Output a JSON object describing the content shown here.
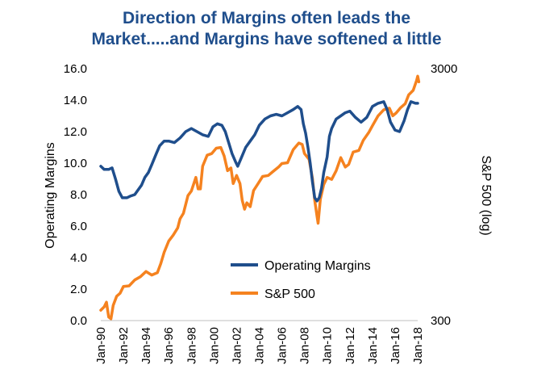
{
  "chart_data": {
    "type": "line",
    "title_line1": "Direction of Margins often leads the",
    "title_line2": "Market.....and Margins have softened a little",
    "ylabel_left": "Operating Margins",
    "ylabel_right": "S&P 500 (log)",
    "ylim_left": [
      0,
      16
    ],
    "yticks_left": [
      "0.0",
      "2.0",
      "4.0",
      "6.0",
      "8.0",
      "10.0",
      "12.0",
      "14.0",
      "16.0"
    ],
    "ylim_right": [
      300,
      3000
    ],
    "yticks_right": [
      "300",
      "3000"
    ],
    "right_scale": "log",
    "xlim": [
      1990,
      2018
    ],
    "xticks": [
      "Jan-90",
      "Jan-92",
      "Jan-94",
      "Jan-96",
      "Jan-98",
      "Jan-00",
      "Jan-02",
      "Jan-04",
      "Jan-06",
      "Jan-08",
      "Jan-10",
      "Jan-12",
      "Jan-14",
      "Jan-16",
      "Jan-18"
    ],
    "legend_position": "bottom-right",
    "colors": {
      "margins": "#1f4e8c",
      "sp500": "#f5821f"
    },
    "series": [
      {
        "name": "Operating Margins",
        "axis": "left",
        "points": [
          [
            1990.0,
            9.8
          ],
          [
            1990.3,
            9.6
          ],
          [
            1990.7,
            9.6
          ],
          [
            1991.0,
            9.7
          ],
          [
            1991.3,
            9.0
          ],
          [
            1991.6,
            8.2
          ],
          [
            1991.9,
            7.8
          ],
          [
            1992.3,
            7.8
          ],
          [
            1992.6,
            7.9
          ],
          [
            1993.0,
            8.0
          ],
          [
            1993.3,
            8.3
          ],
          [
            1993.6,
            8.6
          ],
          [
            1993.9,
            9.1
          ],
          [
            1994.2,
            9.4
          ],
          [
            1994.5,
            9.9
          ],
          [
            1994.9,
            10.6
          ],
          [
            1995.2,
            11.1
          ],
          [
            1995.6,
            11.4
          ],
          [
            1996.0,
            11.4
          ],
          [
            1996.5,
            11.3
          ],
          [
            1997.0,
            11.6
          ],
          [
            1997.5,
            12.0
          ],
          [
            1998.0,
            12.2
          ],
          [
            1998.5,
            12.0
          ],
          [
            1999.0,
            11.8
          ],
          [
            1999.5,
            11.7
          ],
          [
            1999.9,
            12.3
          ],
          [
            2000.3,
            12.5
          ],
          [
            2000.7,
            12.4
          ],
          [
            2001.0,
            12.0
          ],
          [
            2001.3,
            11.3
          ],
          [
            2001.6,
            10.6
          ],
          [
            2001.9,
            10.1
          ],
          [
            2002.1,
            9.8
          ],
          [
            2002.4,
            10.3
          ],
          [
            2002.8,
            11.0
          ],
          [
            2003.2,
            11.4
          ],
          [
            2003.6,
            11.8
          ],
          [
            2004.0,
            12.4
          ],
          [
            2004.5,
            12.8
          ],
          [
            2005.0,
            13.0
          ],
          [
            2005.5,
            13.1
          ],
          [
            2006.0,
            13.0
          ],
          [
            2006.5,
            13.2
          ],
          [
            2007.0,
            13.4
          ],
          [
            2007.4,
            13.6
          ],
          [
            2007.7,
            13.4
          ],
          [
            2007.9,
            12.5
          ],
          [
            2008.1,
            11.9
          ],
          [
            2008.3,
            11.0
          ],
          [
            2008.5,
            10.0
          ],
          [
            2008.7,
            8.8
          ],
          [
            2008.9,
            7.8
          ],
          [
            2009.1,
            7.6
          ],
          [
            2009.3,
            7.8
          ],
          [
            2009.5,
            8.4
          ],
          [
            2009.7,
            9.4
          ],
          [
            2010.0,
            10.4
          ],
          [
            2010.2,
            11.7
          ],
          [
            2010.4,
            12.2
          ],
          [
            2010.8,
            12.8
          ],
          [
            2011.2,
            13.0
          ],
          [
            2011.6,
            13.2
          ],
          [
            2012.0,
            13.3
          ],
          [
            2012.5,
            12.9
          ],
          [
            2013.0,
            12.6
          ],
          [
            2013.5,
            12.9
          ],
          [
            2014.0,
            13.6
          ],
          [
            2014.5,
            13.8
          ],
          [
            2015.0,
            13.9
          ],
          [
            2015.3,
            13.4
          ],
          [
            2015.6,
            12.6
          ],
          [
            2016.0,
            12.1
          ],
          [
            2016.4,
            12.0
          ],
          [
            2016.8,
            12.7
          ],
          [
            2017.1,
            13.4
          ],
          [
            2017.4,
            13.9
          ],
          [
            2017.8,
            13.8
          ],
          [
            2018.0,
            13.8
          ]
        ]
      },
      {
        "name": "S&P 500",
        "axis": "right",
        "points": [
          [
            1990.0,
            330
          ],
          [
            1990.3,
            340
          ],
          [
            1990.5,
            355
          ],
          [
            1990.7,
            310
          ],
          [
            1990.9,
            305
          ],
          [
            1991.1,
            345
          ],
          [
            1991.4,
            375
          ],
          [
            1991.7,
            385
          ],
          [
            1992.0,
            410
          ],
          [
            1992.5,
            412
          ],
          [
            1993.0,
            435
          ],
          [
            1993.5,
            448
          ],
          [
            1994.0,
            470
          ],
          [
            1994.5,
            455
          ],
          [
            1995.0,
            465
          ],
          [
            1995.3,
            505
          ],
          [
            1995.6,
            560
          ],
          [
            1996.0,
            620
          ],
          [
            1996.4,
            655
          ],
          [
            1996.8,
            700
          ],
          [
            1997.0,
            760
          ],
          [
            1997.3,
            800
          ],
          [
            1997.7,
            940
          ],
          [
            1998.0,
            980
          ],
          [
            1998.4,
            1110
          ],
          [
            1998.6,
            1000
          ],
          [
            1998.8,
            1000
          ],
          [
            1999.0,
            1230
          ],
          [
            1999.4,
            1360
          ],
          [
            1999.8,
            1380
          ],
          [
            2000.2,
            1450
          ],
          [
            2000.6,
            1460
          ],
          [
            2000.9,
            1350
          ],
          [
            2001.2,
            1180
          ],
          [
            2001.5,
            1210
          ],
          [
            2001.7,
            1050
          ],
          [
            2002.0,
            1130
          ],
          [
            2002.3,
            1050
          ],
          [
            2002.5,
            900
          ],
          [
            2002.7,
            830
          ],
          [
            2002.9,
            880
          ],
          [
            2003.2,
            850
          ],
          [
            2003.5,
            985
          ],
          [
            2003.9,
            1050
          ],
          [
            2004.3,
            1120
          ],
          [
            2004.8,
            1130
          ],
          [
            2005.2,
            1170
          ],
          [
            2005.7,
            1220
          ],
          [
            2006.0,
            1260
          ],
          [
            2006.5,
            1270
          ],
          [
            2007.0,
            1430
          ],
          [
            2007.5,
            1520
          ],
          [
            2007.8,
            1500
          ],
          [
            2008.0,
            1380
          ],
          [
            2008.4,
            1310
          ],
          [
            2008.7,
            1100
          ],
          [
            2008.9,
            900
          ],
          [
            2009.1,
            780
          ],
          [
            2009.2,
            730
          ],
          [
            2009.4,
            910
          ],
          [
            2009.7,
            1040
          ],
          [
            2010.0,
            1110
          ],
          [
            2010.4,
            1090
          ],
          [
            2010.8,
            1180
          ],
          [
            2011.2,
            1330
          ],
          [
            2011.6,
            1220
          ],
          [
            2011.9,
            1250
          ],
          [
            2012.3,
            1400
          ],
          [
            2012.8,
            1420
          ],
          [
            2013.2,
            1560
          ],
          [
            2013.7,
            1680
          ],
          [
            2014.0,
            1780
          ],
          [
            2014.5,
            1950
          ],
          [
            2015.0,
            2060
          ],
          [
            2015.5,
            2090
          ],
          [
            2015.8,
            1950
          ],
          [
            2016.1,
            2000
          ],
          [
            2016.5,
            2100
          ],
          [
            2016.9,
            2180
          ],
          [
            2017.2,
            2360
          ],
          [
            2017.6,
            2460
          ],
          [
            2017.9,
            2690
          ],
          [
            2018.0,
            2800
          ],
          [
            2018.1,
            2660
          ]
        ]
      }
    ]
  }
}
